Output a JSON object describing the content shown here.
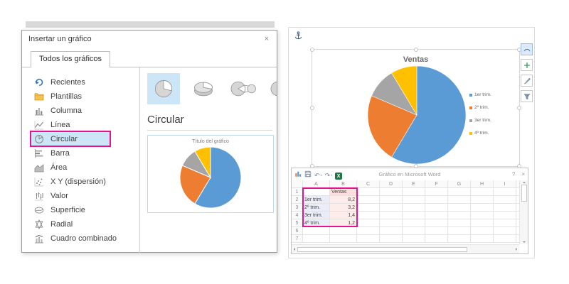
{
  "dialog": {
    "title": "Insertar un gráfico",
    "close_glyph": "×",
    "tab": "Todos los gráficos",
    "sidebar": [
      {
        "label": "Recientes",
        "icon": "recent-icon",
        "selected": false
      },
      {
        "label": "Plantillas",
        "icon": "folder-icon",
        "selected": false
      },
      {
        "label": "Columna",
        "icon": "column-chart-icon",
        "selected": false
      },
      {
        "label": "Línea",
        "icon": "line-chart-icon",
        "selected": false
      },
      {
        "label": "Circular",
        "icon": "pie-chart-icon",
        "selected": true
      },
      {
        "label": "Barra",
        "icon": "bar-chart-icon",
        "selected": false
      },
      {
        "label": "Área",
        "icon": "area-chart-icon",
        "selected": false
      },
      {
        "label": "X Y (dispersión)",
        "icon": "scatter-chart-icon",
        "selected": false
      },
      {
        "label": "Valor",
        "icon": "stock-chart-icon",
        "selected": false
      },
      {
        "label": "Superficie",
        "icon": "surface-chart-icon",
        "selected": false
      },
      {
        "label": "Radial",
        "icon": "radar-chart-icon",
        "selected": false
      },
      {
        "label": "Cuadro combinado",
        "icon": "combo-chart-icon",
        "selected": false
      }
    ],
    "subtypes": [
      {
        "name": "pie-2d",
        "selected": true
      },
      {
        "name": "pie-3d",
        "selected": false
      },
      {
        "name": "pie-of-pie",
        "selected": false
      },
      {
        "name": "bar-of-pie",
        "selected": false
      }
    ],
    "section_heading": "Circular",
    "preview_title": "Título del gráfico"
  },
  "document": {
    "chart_title": "Ventas",
    "legend": [
      "1er trim.",
      "2º trim.",
      "3er trim.",
      "4º trim."
    ],
    "side_buttons": [
      "layout-options",
      "chart-elements",
      "chart-styles",
      "chart-filters"
    ]
  },
  "spreadsheet": {
    "window_title": "Gráfico en Microsoft Word",
    "toolbar_icons": [
      "chart-icon",
      "save-icon",
      "undo-icon",
      "redo-icon",
      "excel-icon"
    ],
    "controls": {
      "help": "?",
      "close": "×"
    },
    "column_headers": [
      "A",
      "B",
      "C",
      "D",
      "E",
      "F",
      "G",
      "H",
      "I"
    ],
    "row_numbers": [
      "1",
      "2",
      "3",
      "4",
      "5",
      "6",
      "7"
    ],
    "rows": [
      [
        "",
        "Ventas"
      ],
      [
        "1er trim.",
        "8,2"
      ],
      [
        "2º trim.",
        "3,2"
      ],
      [
        "3er trim.",
        "1,4"
      ],
      [
        "4º trim.",
        "1,2"
      ],
      [
        "",
        ""
      ],
      [
        "",
        ""
      ]
    ]
  },
  "chart_data": [
    {
      "type": "pie",
      "title": "Título del gráfico",
      "categories": [
        "1er trim.",
        "2º trim.",
        "3er trim.",
        "4º trim."
      ],
      "values": [
        8.2,
        3.2,
        1.4,
        1.2
      ],
      "legend_position": "none",
      "location": "dialog-preview"
    },
    {
      "type": "pie",
      "title": "Ventas",
      "categories": [
        "1er trim.",
        "2º trim.",
        "3er trim.",
        "4º trim."
      ],
      "values": [
        8.2,
        3.2,
        1.4,
        1.2
      ],
      "legend_position": "right",
      "location": "word-document"
    }
  ],
  "colors": {
    "series": [
      "#5B9BD5",
      "#ED7D31",
      "#A5A5A5",
      "#FFC000"
    ],
    "highlight": "#E6138F",
    "selection_bg": "#CDE6F7",
    "preview_border": "#BDD7EE"
  }
}
